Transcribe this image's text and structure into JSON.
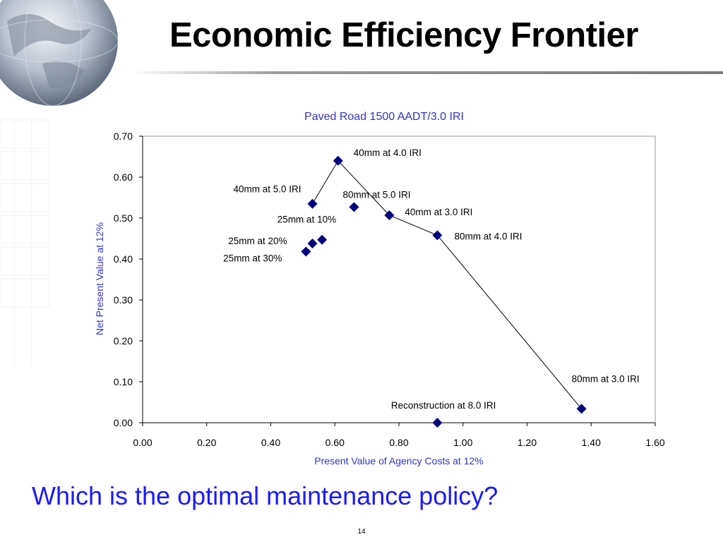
{
  "slide": {
    "title": "Economic Efficiency Frontier",
    "question": "Which is the optimal maintenance policy?",
    "page_number": "14"
  },
  "colors": {
    "marker": "#000080",
    "axis_title": "#3333cc",
    "question_text": "#1a1aff"
  },
  "chart_data": {
    "type": "scatter",
    "title": "Paved Road 1500 AADT/3.0 IRI",
    "xlabel": "Present Value of Agency Costs at 12%",
    "ylabel": "Net Present Value at 12%",
    "xlim": [
      0,
      1.6
    ],
    "ylim": [
      0,
      0.7
    ],
    "x_ticks": [
      "0.00",
      "0.20",
      "0.40",
      "0.60",
      "0.80",
      "1.00",
      "1.20",
      "1.40",
      "1.60"
    ],
    "y_ticks": [
      "0.00",
      "0.10",
      "0.20",
      "0.30",
      "0.40",
      "0.50",
      "0.60",
      "0.70"
    ],
    "grid": false,
    "legend": "none",
    "marker": "diamond",
    "points": [
      {
        "label": "40mm at 4.0 IRI",
        "x": 0.61,
        "y": 0.64
      },
      {
        "label": "40mm at 5.0 IRI",
        "x": 0.53,
        "y": 0.535
      },
      {
        "label": "80mm at 5.0 IRI",
        "x": 0.66,
        "y": 0.527
      },
      {
        "label": "40mm at 3.0 IRI",
        "x": 0.77,
        "y": 0.507
      },
      {
        "label": "25mm at 10%",
        "x": 0.56,
        "y": 0.447
      },
      {
        "label": "25mm at 20%",
        "x": 0.53,
        "y": 0.438
      },
      {
        "label": "80mm at 4.0 IRI",
        "x": 0.92,
        "y": 0.458
      },
      {
        "label": "25mm at 30%",
        "x": 0.51,
        "y": 0.418
      },
      {
        "label": "80mm at 3.0 IRI",
        "x": 1.37,
        "y": 0.034
      },
      {
        "label": "Reconstruction at 8.0 IRI",
        "x": 0.92,
        "y": 0.0
      }
    ],
    "frontier": [
      "40mm at 5.0 IRI",
      "40mm at 4.0 IRI",
      "40mm at 3.0 IRI",
      "80mm at 4.0 IRI",
      "80mm at 3.0 IRI"
    ]
  }
}
